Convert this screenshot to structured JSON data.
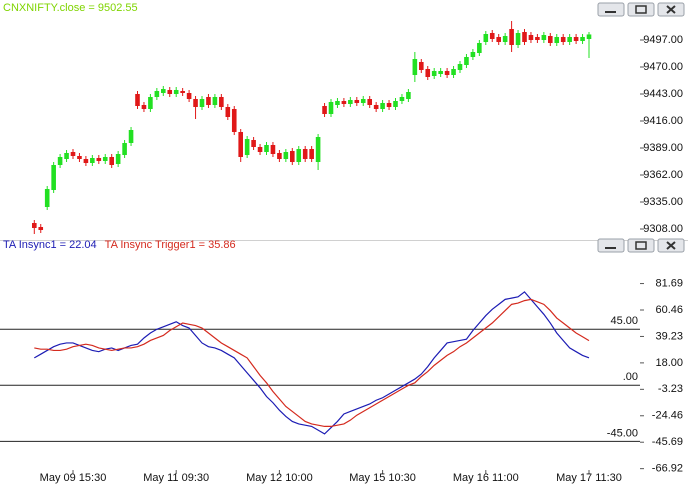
{
  "chart_data": [
    {
      "type": "candlestick",
      "title": "CNXNIFTY.close = 9502.55",
      "title_color": "#7fd400",
      "up_color": "#22e022",
      "down_color": "#e01818",
      "open": [
        9314,
        9310,
        9330,
        9347,
        9372,
        9378,
        9385,
        9381,
        9378,
        9374,
        9379,
        9376,
        9380,
        9373,
        9382,
        9394,
        9443,
        9432,
        9428,
        9440,
        9444,
        9447,
        9443,
        9446,
        9444,
        9438,
        9430,
        9440,
        9432,
        9440,
        9430,
        9428,
        9405,
        9382,
        9397,
        9390,
        9385,
        9392,
        9384,
        9378,
        9386,
        9375,
        9388,
        9388,
        9375,
        9431,
        9423,
        9432,
        9436,
        9433,
        9437,
        9434,
        9438,
        9432,
        9428,
        9434,
        9430,
        9436,
        9438,
        9462,
        9475,
        9468,
        9461,
        9463,
        9466,
        9462,
        9467,
        9472,
        9480,
        9484,
        9495,
        9504,
        9500,
        9495,
        9508,
        9492,
        9505,
        9502,
        9500,
        9497,
        9501,
        9494,
        9500,
        9495,
        9500,
        9496,
        9498
      ],
      "high": [
        9317,
        9313,
        9351,
        9375,
        9383,
        9387,
        9388,
        9384,
        9381,
        9382,
        9382,
        9383,
        9383,
        9386,
        9397,
        9410,
        9446,
        9435,
        9443,
        9449,
        9451,
        9450,
        9450,
        9449,
        9447,
        9441,
        9441,
        9443,
        9443,
        9443,
        9433,
        9431,
        9408,
        9401,
        9400,
        9393,
        9395,
        9395,
        9387,
        9388,
        9389,
        9391,
        9391,
        9391,
        9403,
        9434,
        9438,
        9439,
        9439,
        9440,
        9440,
        9441,
        9441,
        9435,
        9437,
        9437,
        9439,
        9443,
        9448,
        9485,
        9478,
        9471,
        9469,
        9469,
        9469,
        9471,
        9476,
        9483,
        9488,
        9497,
        9506,
        9507,
        9503,
        9504,
        9516,
        9507,
        9508,
        9505,
        9503,
        9505,
        9504,
        9503,
        9503,
        9503,
        9503,
        9503,
        9505
      ],
      "low": [
        9303,
        9304,
        9327,
        9344,
        9369,
        9375,
        9378,
        9375,
        9371,
        9371,
        9373,
        9373,
        9369,
        9370,
        9379,
        9391,
        9428,
        9425,
        9425,
        9437,
        9441,
        9440,
        9440,
        9441,
        9435,
        9418,
        9427,
        9429,
        9429,
        9427,
        9417,
        9402,
        9375,
        9379,
        9387,
        9382,
        9382,
        9380,
        9375,
        9375,
        9372,
        9372,
        9375,
        9375,
        9367,
        9420,
        9420,
        9429,
        9430,
        9430,
        9431,
        9431,
        9429,
        9425,
        9425,
        9427,
        9427,
        9433,
        9435,
        9455,
        9464,
        9457,
        9458,
        9460,
        9459,
        9459,
        9464,
        9469,
        9477,
        9481,
        9492,
        9495,
        9492,
        9492,
        9485,
        9489,
        9492,
        9494,
        9494,
        9494,
        9491,
        9491,
        9492,
        9492,
        9493,
        9493,
        9479
      ],
      "close": [
        9309,
        9307,
        9348,
        9372,
        9380,
        9384,
        9381,
        9378,
        9374,
        9379,
        9376,
        9380,
        9372,
        9383,
        9394,
        9407,
        9431,
        9428,
        9440,
        9446,
        9448,
        9443,
        9447,
        9444,
        9438,
        9430,
        9438,
        9432,
        9440,
        9430,
        9420,
        9405,
        9380,
        9398,
        9390,
        9385,
        9392,
        9383,
        9378,
        9385,
        9375,
        9388,
        9378,
        9378,
        9400,
        9423,
        9435,
        9436,
        9433,
        9437,
        9434,
        9438,
        9432,
        9428,
        9434,
        9430,
        9436,
        9440,
        9445,
        9478,
        9467,
        9460,
        9466,
        9466,
        9462,
        9468,
        9473,
        9480,
        9485,
        9494,
        9503,
        9498,
        9495,
        9501,
        9492,
        9504,
        9495,
        9497,
        9497,
        9502,
        9494,
        9500,
        9495,
        9500,
        9496,
        9500,
        9502.55
      ],
      "ylim": [
        9297,
        9519
      ],
      "yticks": [
        {
          "value": 9497,
          "label": "9497.00"
        },
        {
          "value": 9470,
          "label": "9470.00"
        },
        {
          "value": 9443,
          "label": "9443.00"
        },
        {
          "value": 9416,
          "label": "9416.00"
        },
        {
          "value": 9389,
          "label": "9389.00"
        },
        {
          "value": 9362,
          "label": "9362.00"
        },
        {
          "value": 9335,
          "label": "9335.00"
        },
        {
          "value": 9308,
          "label": "9308.00"
        }
      ]
    },
    {
      "type": "line",
      "categories": [
        null,
        null,
        null,
        null,
        null,
        null,
        "May 09 15:30",
        null,
        null,
        null,
        null,
        null,
        null,
        null,
        null,
        null,
        null,
        null,
        null,
        null,
        null,
        null,
        "May 11 09:30",
        null,
        null,
        null,
        null,
        null,
        null,
        null,
        null,
        null,
        null,
        null,
        null,
        null,
        null,
        null,
        "May 12 10:00",
        null,
        null,
        null,
        null,
        null,
        null,
        null,
        null,
        null,
        null,
        null,
        null,
        null,
        null,
        null,
        "May 15 10:30",
        null,
        null,
        null,
        null,
        null,
        null,
        null,
        null,
        null,
        null,
        null,
        null,
        null,
        null,
        null,
        "May 16 11:00",
        null,
        null,
        null,
        null,
        null,
        null,
        null,
        null,
        null,
        null,
        null,
        null,
        null,
        null,
        null,
        "May 17 11:30"
      ],
      "series": [
        {
          "name": "TA Insync1 = 22.04",
          "color": "#1c1cb4",
          "values": [
            22,
            25,
            28,
            31,
            33,
            34,
            34,
            32,
            30,
            28,
            27,
            29,
            30,
            28,
            30,
            32,
            33,
            38,
            42,
            45,
            47,
            49,
            51,
            48,
            46,
            40,
            34,
            31,
            30,
            28,
            25,
            22,
            16,
            10,
            4,
            -2,
            -9,
            -14,
            -20,
            -25,
            -29,
            -31,
            -32,
            -33,
            -36,
            -39,
            -34,
            -29,
            -23,
            -21,
            -19,
            -17,
            -15,
            -12,
            -10,
            -7,
            -4,
            -1,
            2,
            5,
            9,
            15,
            22,
            28,
            34,
            35,
            36,
            37,
            44,
            50,
            56,
            61,
            65,
            69,
            70,
            71,
            75,
            69,
            63,
            57,
            50,
            42,
            36,
            30,
            27,
            24,
            22.04
          ]
        },
        {
          "name": "TA Insync Trigger1 = 35.86",
          "color": "#d42a1e",
          "values": [
            30,
            29,
            29,
            28,
            28,
            29,
            31,
            32,
            33,
            32,
            30,
            29,
            28,
            29,
            30,
            30,
            31,
            33,
            36,
            38,
            40,
            44,
            47,
            50,
            49,
            48,
            46,
            42,
            38,
            34,
            31,
            28,
            25,
            22,
            15,
            8,
            2,
            -5,
            -11,
            -17,
            -21,
            -25,
            -29,
            -31,
            -32,
            -33,
            -33,
            -32,
            -31,
            -28,
            -24,
            -21,
            -18,
            -15,
            -12,
            -9,
            -6,
            -3,
            0,
            2,
            7,
            11,
            16,
            20,
            24,
            27,
            31,
            34,
            38,
            42,
            46,
            50,
            55,
            60,
            65,
            66,
            68,
            69,
            67,
            65,
            60,
            54,
            50,
            46,
            42,
            39,
            35.86
          ]
        }
      ],
      "levels": [
        {
          "value": 45,
          "label": "45.00"
        },
        {
          "value": 0,
          "label": ".00"
        },
        {
          "value": -45,
          "label": "-45.00"
        }
      ],
      "ylim": [
        -68,
        99
      ],
      "yticks": [
        81.69,
        60.46,
        39.23,
        {
          "value": 18,
          "label": "18.00"
        },
        -3.23,
        -24.46,
        -45.69,
        -66.92
      ]
    }
  ]
}
